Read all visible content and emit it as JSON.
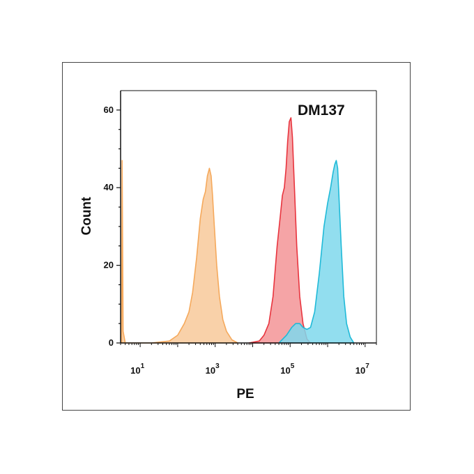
{
  "chart_data": {
    "type": "area",
    "title": "DM137",
    "xlabel": "PE",
    "ylabel": "Count",
    "xscale": "log",
    "xlim": [
      3,
      20000000
    ],
    "ylim": [
      0,
      65
    ],
    "x_ticks": [
      {
        "base": "10",
        "exp": "1",
        "value": 10
      },
      {
        "base": "10",
        "exp": "3",
        "value": 1000
      },
      {
        "base": "10",
        "exp": "5",
        "value": 100000
      },
      {
        "base": "10",
        "exp": "7",
        "value": 10000000
      }
    ],
    "y_ticks": [
      {
        "label": "0",
        "value": 0
      },
      {
        "label": "20",
        "value": 20
      },
      {
        "label": "40",
        "value": 40
      },
      {
        "label": "60",
        "value": 60
      }
    ],
    "grid": false,
    "legend": "none",
    "series": [
      {
        "color": "#f5a95c",
        "fill": "#f8c99a",
        "points": [
          [
            3.2,
            0
          ],
          [
            3.3,
            47
          ],
          [
            3.5,
            3
          ],
          [
            4,
            0
          ],
          [
            20,
            0
          ],
          [
            60,
            0.5
          ],
          [
            100,
            2
          ],
          [
            150,
            5
          ],
          [
            200,
            8
          ],
          [
            250,
            13
          ],
          [
            320,
            22
          ],
          [
            400,
            32
          ],
          [
            480,
            37
          ],
          [
            550,
            39
          ],
          [
            620,
            43
          ],
          [
            700,
            45
          ],
          [
            780,
            43
          ],
          [
            850,
            38
          ],
          [
            950,
            30
          ],
          [
            1100,
            20
          ],
          [
            1300,
            12
          ],
          [
            1600,
            6
          ],
          [
            2000,
            3
          ],
          [
            2800,
            0.8
          ],
          [
            4000,
            0
          ]
        ]
      },
      {
        "color": "#e8343e",
        "fill": "#f39496",
        "points": [
          [
            8000,
            0
          ],
          [
            15000,
            0.5
          ],
          [
            20000,
            2
          ],
          [
            27000,
            5
          ],
          [
            35000,
            12
          ],
          [
            45000,
            25
          ],
          [
            55000,
            33
          ],
          [
            62000,
            38
          ],
          [
            70000,
            40
          ],
          [
            78000,
            45
          ],
          [
            86000,
            52
          ],
          [
            95000,
            57
          ],
          [
            105000,
            58
          ],
          [
            115000,
            53
          ],
          [
            130000,
            40
          ],
          [
            150000,
            25
          ],
          [
            180000,
            12
          ],
          [
            220000,
            5
          ],
          [
            280000,
            1
          ],
          [
            350000,
            0
          ]
        ]
      },
      {
        "color": "#1fbad8",
        "fill": "#7fd8ec",
        "points": [
          [
            50000,
            0
          ],
          [
            80000,
            2
          ],
          [
            110000,
            4
          ],
          [
            140000,
            5
          ],
          [
            180000,
            5
          ],
          [
            220000,
            4
          ],
          [
            280000,
            3.5
          ],
          [
            350000,
            4
          ],
          [
            450000,
            8
          ],
          [
            600000,
            18
          ],
          [
            800000,
            30
          ],
          [
            1000000,
            36
          ],
          [
            1200000,
            40
          ],
          [
            1400000,
            44
          ],
          [
            1550000,
            46
          ],
          [
            1700000,
            47
          ],
          [
            1850000,
            45
          ],
          [
            2000000,
            38
          ],
          [
            2300000,
            25
          ],
          [
            2700000,
            12
          ],
          [
            3200000,
            5
          ],
          [
            4000000,
            1.5
          ],
          [
            5000000,
            0
          ]
        ]
      }
    ]
  }
}
